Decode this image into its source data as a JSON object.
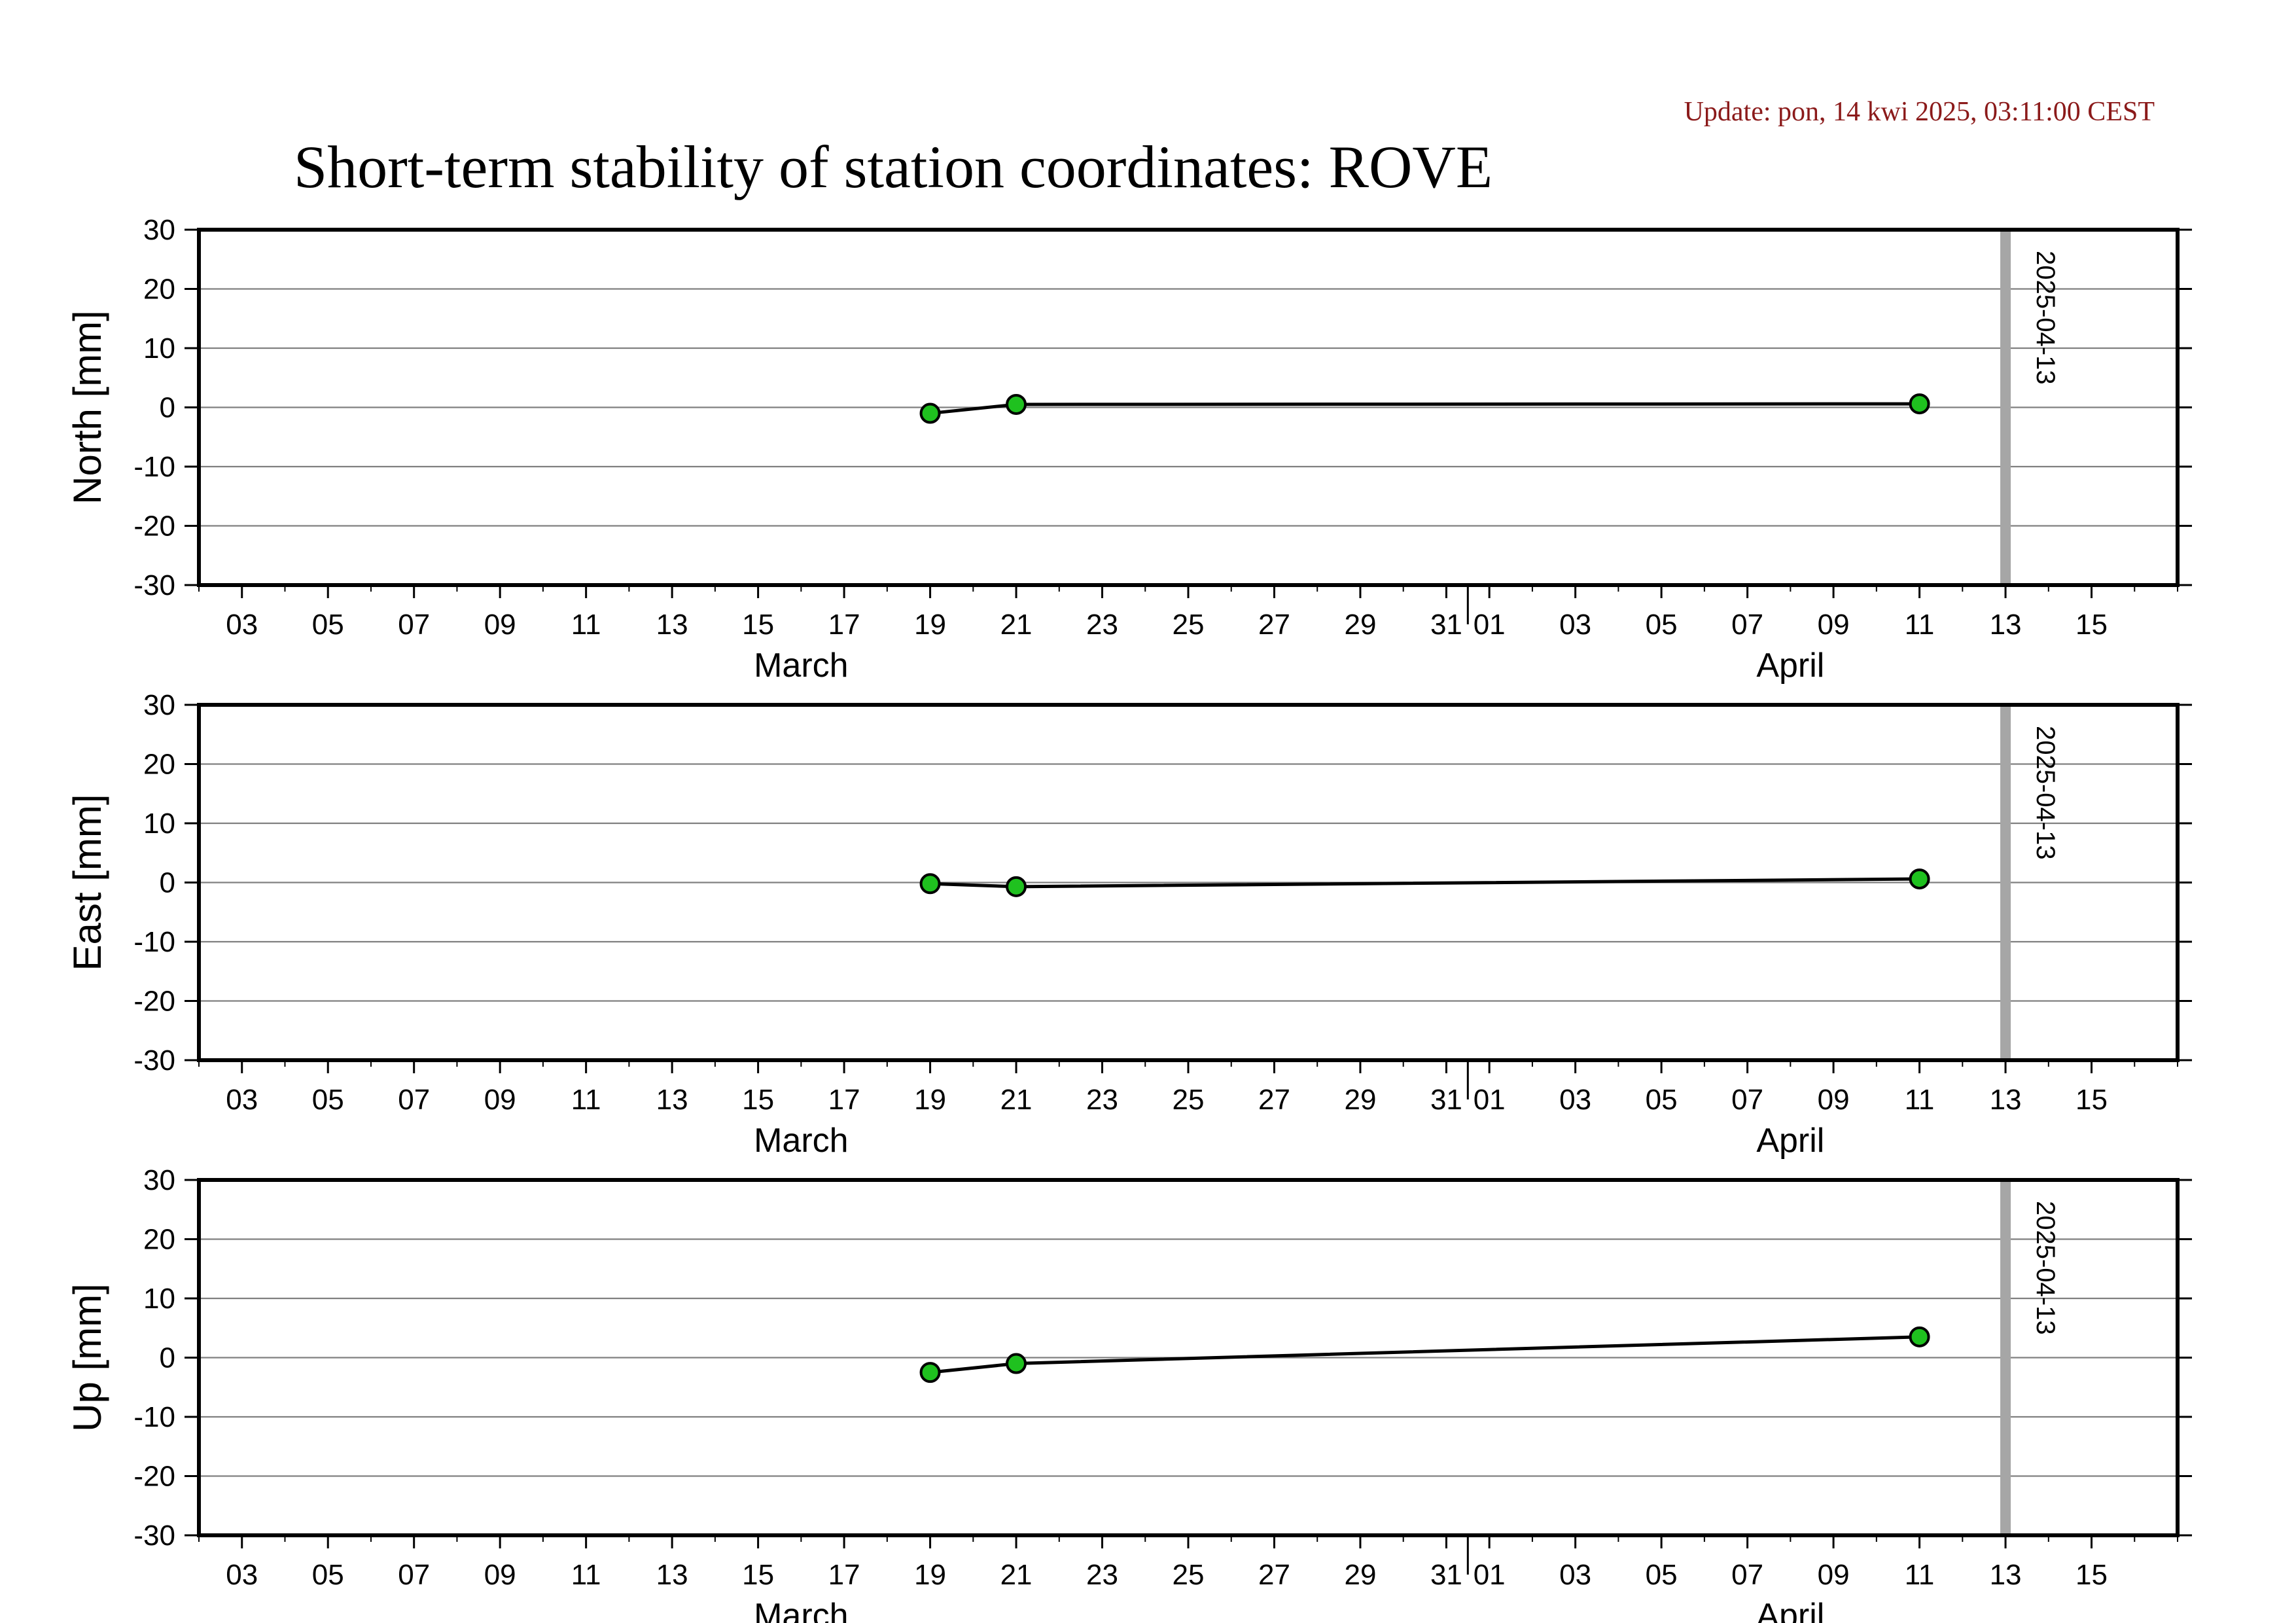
{
  "update_text": "Update: pon, 14 kwi 2025, 03:11:00 CEST",
  "title": "Short-term stability of station coordinates: ROVE",
  "colors": {
    "update_text": "#8b1a1a",
    "point_fill": "#1fc11f",
    "point_stroke": "#000000",
    "line": "#000000",
    "gridline": "#808080",
    "marker_band": "#a6a6a6",
    "frame": "#000000"
  },
  "marker": {
    "date": "2025-04-13",
    "label": "2025-04-13"
  },
  "chart_data": [
    {
      "type": "line",
      "ylabel": "North [mm]",
      "ylim": [
        -30,
        30
      ],
      "yticks": [
        30,
        20,
        10,
        0,
        -10,
        -20,
        -30
      ],
      "grid": true,
      "xlim": [
        "2025-03-02",
        "2025-04-17"
      ],
      "x": [
        "2025-03-19",
        "2025-03-21",
        "2025-04-11"
      ],
      "values": [
        -1.0,
        0.5,
        0.6
      ]
    },
    {
      "type": "line",
      "ylabel": "East [mm]",
      "ylim": [
        -30,
        30
      ],
      "yticks": [
        30,
        20,
        10,
        0,
        -10,
        -20,
        -30
      ],
      "grid": true,
      "xlim": [
        "2025-03-02",
        "2025-04-17"
      ],
      "x": [
        "2025-03-19",
        "2025-03-21",
        "2025-04-11"
      ],
      "values": [
        -0.2,
        -0.7,
        0.6
      ]
    },
    {
      "type": "line",
      "ylabel": "Up [mm]",
      "ylim": [
        -30,
        30
      ],
      "yticks": [
        30,
        20,
        10,
        0,
        -10,
        -20,
        -30
      ],
      "grid": true,
      "xlim": [
        "2025-03-02",
        "2025-04-17"
      ],
      "x": [
        "2025-03-19",
        "2025-03-21",
        "2025-04-11"
      ],
      "values": [
        -2.5,
        -1.0,
        3.5
      ]
    }
  ],
  "x_axis": {
    "day_labels": [
      "03",
      "05",
      "07",
      "09",
      "11",
      "13",
      "15",
      "17",
      "19",
      "21",
      "23",
      "25",
      "27",
      "29",
      "31",
      "01",
      "03",
      "05",
      "07",
      "09",
      "11",
      "13",
      "15"
    ],
    "day_dates": [
      "2025-03-03",
      "2025-03-05",
      "2025-03-07",
      "2025-03-09",
      "2025-03-11",
      "2025-03-13",
      "2025-03-15",
      "2025-03-17",
      "2025-03-19",
      "2025-03-21",
      "2025-03-23",
      "2025-03-25",
      "2025-03-27",
      "2025-03-29",
      "2025-03-31",
      "2025-04-01",
      "2025-04-03",
      "2025-04-05",
      "2025-04-07",
      "2025-04-09",
      "2025-04-11",
      "2025-04-13",
      "2025-04-15"
    ],
    "months": [
      {
        "label": "March",
        "center_date": "2025-03-16"
      },
      {
        "label": "April",
        "center_date": "2025-04-08"
      }
    ],
    "month_boundary": "2025-04-01"
  }
}
